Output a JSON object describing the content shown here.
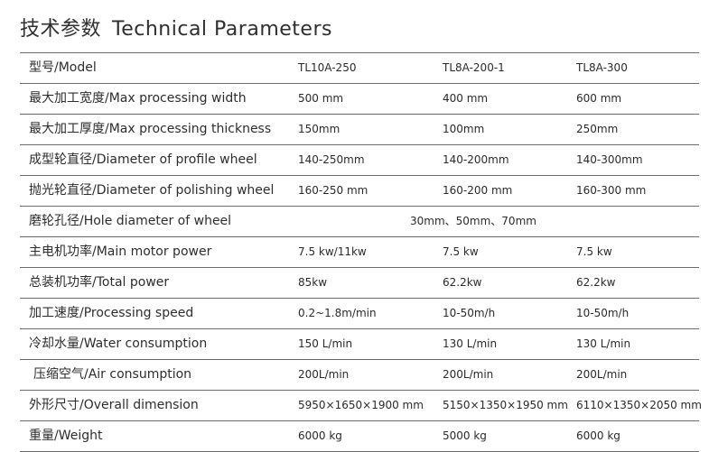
{
  "header": {
    "title_cn": "技术参数",
    "title_en": "Technical Parameters"
  },
  "table": {
    "rows": [
      {
        "label": "型号/Model",
        "values": [
          "TL10A-250",
          "TL8A-200-1",
          "TL8A-300"
        ]
      },
      {
        "label": "最大加工宽度/Max processing width",
        "values": [
          "500 mm",
          "400 mm",
          "600 mm"
        ]
      },
      {
        "label": "最大加工厚度/Max processing thickness",
        "values": [
          "150mm",
          "100mm",
          "250mm"
        ]
      },
      {
        "label": "成型轮直径/Diameter of profile wheel",
        "values": [
          "140-250mm",
          "140-200mm",
          "140-300mm"
        ]
      },
      {
        "label": "抛光轮直径/Diameter of polishing wheel",
        "values": [
          "160-250 mm",
          "160-200 mm",
          "160-300 mm"
        ]
      },
      {
        "label": "磨轮孔径/Hole diameter of wheel",
        "span_value": "30mm、50mm、70mm"
      },
      {
        "label": "主电机功率/Main motor power",
        "values": [
          "7.5 kw/11kw",
          "7.5 kw",
          "7.5 kw"
        ]
      },
      {
        "label": "总装机功率/Total power",
        "values": [
          "85kw",
          "62.2kw",
          "62.2kw"
        ]
      },
      {
        "label": "加工速度/Processing speed",
        "values": [
          "0.2~1.8m/min",
          "10-50m/h",
          "10-50m/h"
        ]
      },
      {
        "label": "冷却水量/Water consumption",
        "values": [
          "150 L/min",
          "130 L/min",
          "130 L/min"
        ]
      },
      {
        "label": "压缩空气/Air consumption",
        "values": [
          "200L/min",
          "200L/min",
          "200L/min"
        ]
      },
      {
        "label": "外形尺寸/Overall dimension",
        "values": [
          "5950×1650×1900 mm",
          "5150×1350×1950 mm",
          "6110×1350×2050 mm"
        ]
      },
      {
        "label": "重量/Weight",
        "values": [
          "6000 kg",
          "5000 kg",
          "6000 kg"
        ]
      }
    ]
  }
}
